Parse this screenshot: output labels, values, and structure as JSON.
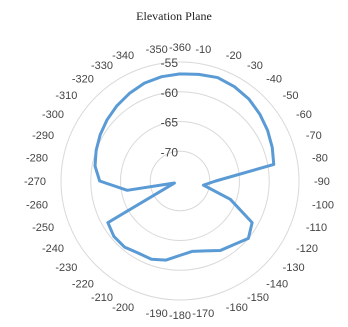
{
  "chart_data": {
    "type": "line",
    "subtype": "polar",
    "title": "Elevation Plane",
    "angle_ticks": [
      "-10",
      "-20",
      "-30",
      "-40",
      "-50",
      "-60",
      "-70",
      "-80",
      "-90",
      "-100",
      "-110",
      "-120",
      "-130",
      "-140",
      "-150",
      "-160",
      "-170",
      "-180",
      "-190",
      "-200",
      "-210",
      "-220",
      "-230",
      "-240",
      "-250",
      "-260",
      "-270",
      "-280",
      "-290",
      "-300",
      "-310",
      "-320",
      "-330",
      "-340",
      "-350",
      "-360"
    ],
    "radial_ticks": [
      "-55",
      "-60",
      "-65",
      "-70"
    ],
    "radial_range": [
      -75,
      -55
    ],
    "grid": true,
    "legend": "none",
    "series_color": "#5b9bd5",
    "series": [
      {
        "angle_deg": [
          0,
          10,
          20,
          30,
          40,
          50,
          60,
          70,
          80,
          90,
          100,
          110,
          120,
          130,
          140,
          150,
          160,
          170,
          180,
          190,
          200,
          210,
          220,
          230,
          240,
          250,
          260,
          270,
          280,
          290,
          300,
          310,
          320,
          330,
          340,
          350
        ],
        "values": [
          -57,
          -56.8,
          -56.5,
          -56.7,
          -57,
          -57.5,
          -58,
          -58.5,
          -59,
          -69,
          -71,
          -66,
          -61,
          -60,
          -61,
          -61.5,
          -62.5,
          -63,
          -62.5,
          -61.5,
          -61,
          -61,
          -60.5,
          -60.5,
          -61,
          -74,
          -66,
          -61.5,
          -60.5,
          -60,
          -59.5,
          -59,
          -58.5,
          -58,
          -57.5,
          -57.2
        ]
      }
    ]
  }
}
